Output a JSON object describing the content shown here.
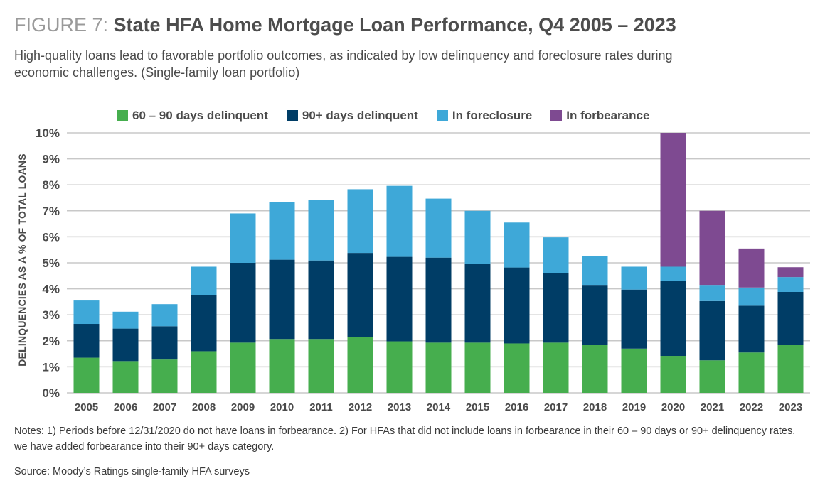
{
  "figure": {
    "label": "FIGURE 7:",
    "title": "State HFA Home Mortgage Loan Performance, Q4 2005 – 2023",
    "subtitle": "High-quality loans lead to favorable portfolio outcomes, as indicated by low delinquency and foreclosure rates during economic challenges. (Single-family loan portfolio)",
    "notes": "Notes: 1) Periods before 12/31/2020 do not have loans in forbearance. 2) For HFAs that did not include loans in forbearance in their 60 – 90 days or 90+ delinquency rates, we have added forbearance into their 90+ days category.",
    "source": "Source: Moody’s Ratings single-family HFA surveys"
  },
  "chart_data": {
    "type": "bar",
    "stacked": true,
    "title": "State HFA Home Mortgage Loan Performance, Q4 2005 – 2023",
    "xlabel": "",
    "ylabel": "DELINQUENCIES AS A % OF TOTAL LOANS",
    "ylim": [
      0,
      10
    ],
    "y_ticks": [
      "0%",
      "1%",
      "2%",
      "3%",
      "4%",
      "5%",
      "6%",
      "7%",
      "8%",
      "9%",
      "10%"
    ],
    "grid": true,
    "legend_position": "top",
    "categories": [
      "2005",
      "2006",
      "2007",
      "2008",
      "2009",
      "2010",
      "2011",
      "2012",
      "2013",
      "2014",
      "2015",
      "2016",
      "2017",
      "2018",
      "2019",
      "2020",
      "2021",
      "2022",
      "2023"
    ],
    "series": [
      {
        "name": "60 – 90 days delinquent",
        "color": "#46ae4e",
        "values": [
          1.35,
          1.22,
          1.28,
          1.6,
          1.93,
          2.07,
          2.07,
          2.15,
          1.98,
          1.93,
          1.93,
          1.9,
          1.93,
          1.85,
          1.7,
          1.42,
          1.25,
          1.55,
          1.85
        ]
      },
      {
        "name": "90+ days delinquent",
        "color": "#003d66",
        "values": [
          1.3,
          1.25,
          1.28,
          2.15,
          3.07,
          3.05,
          3.02,
          3.23,
          3.25,
          3.27,
          3.02,
          2.92,
          2.67,
          2.3,
          2.27,
          2.88,
          2.28,
          1.8,
          2.03
        ]
      },
      {
        "name": "In foreclosure",
        "color": "#3ea8d8",
        "values": [
          0.9,
          0.65,
          0.85,
          1.1,
          1.9,
          2.22,
          2.33,
          2.45,
          2.73,
          2.27,
          2.05,
          1.73,
          1.38,
          1.12,
          0.88,
          0.55,
          0.62,
          0.7,
          0.57
        ]
      },
      {
        "name": "In forbearance",
        "color": "#7e4a91",
        "values": [
          0,
          0,
          0,
          0,
          0,
          0,
          0,
          0,
          0,
          0,
          0,
          0,
          0,
          0,
          0,
          5.15,
          2.85,
          1.5,
          0.38
        ]
      }
    ]
  }
}
